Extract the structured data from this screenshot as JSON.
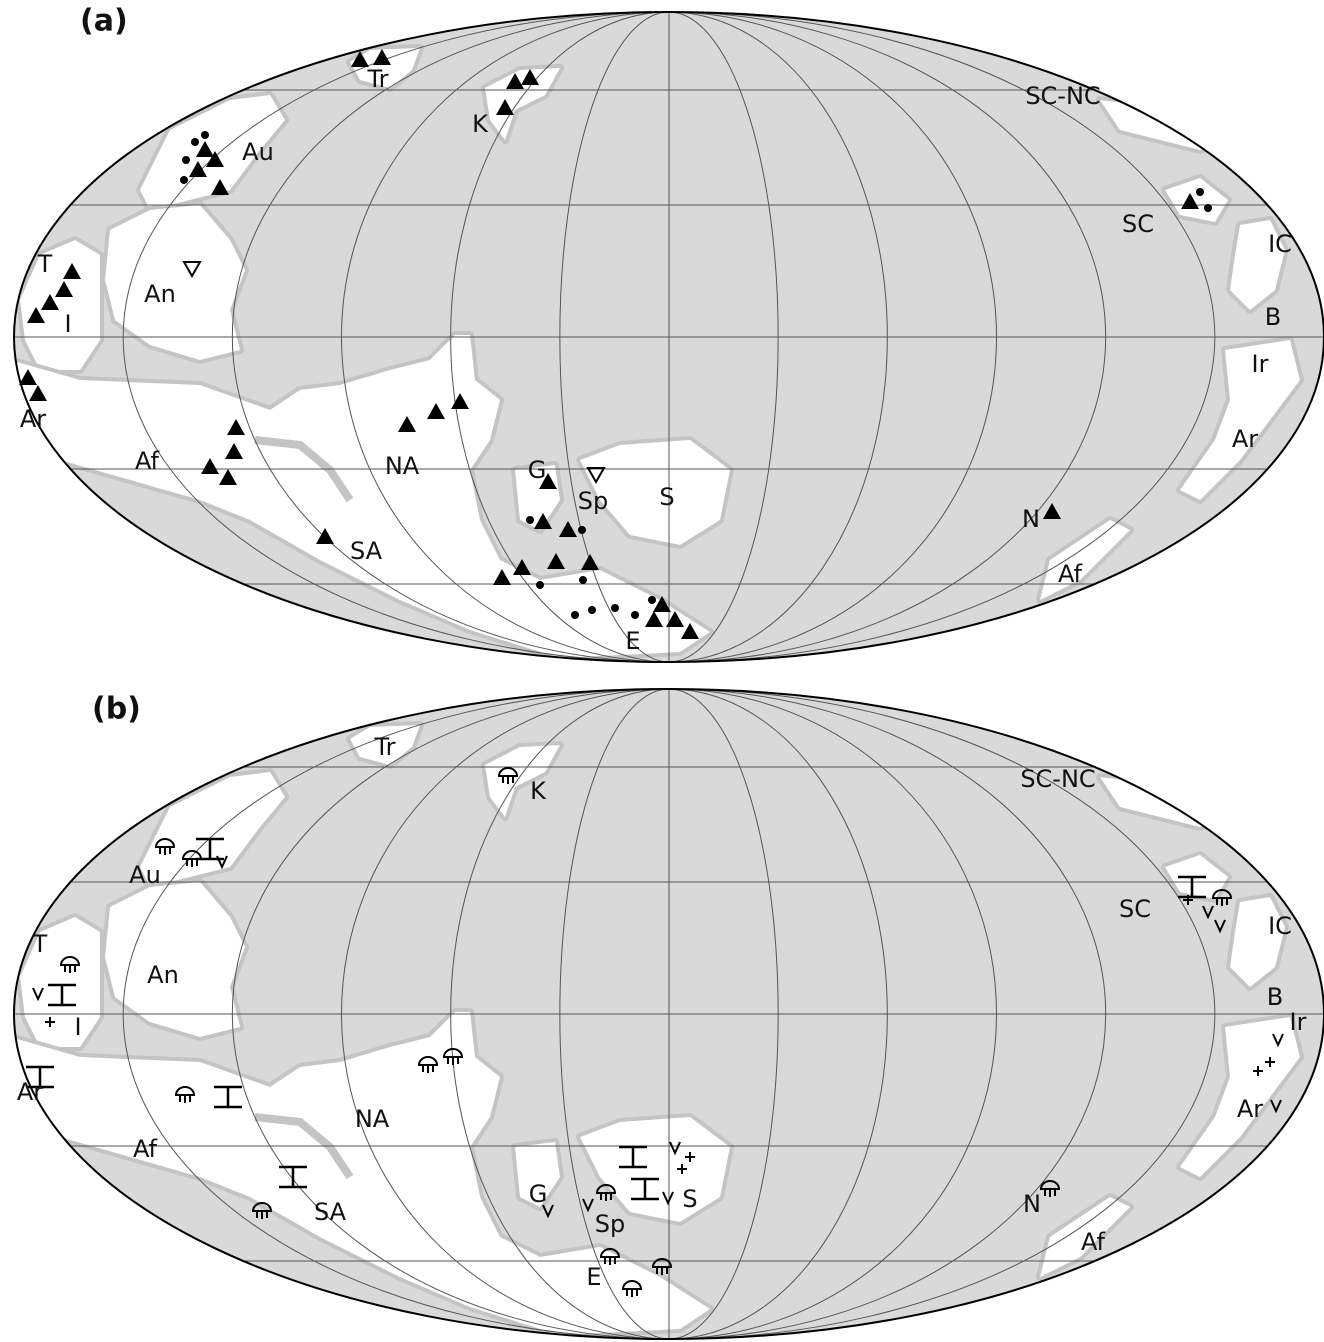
{
  "panels": [
    {
      "label": "(a)",
      "regions": [
        "Tr",
        "K",
        "SC-NC",
        "Au",
        "SC",
        "IC",
        "T",
        "An",
        "I",
        "B",
        "Ir",
        "Ar",
        "Ar",
        "Af",
        "NA",
        "G",
        "Sp",
        "S",
        "SA",
        "N",
        "Af",
        "E"
      ]
    },
    {
      "label": "(b)",
      "regions": [
        "Tr",
        "K",
        "SC-NC",
        "Au",
        "SC",
        "IC",
        "T",
        "An",
        "I",
        "B",
        "Ir",
        "Ar",
        "Ar",
        "Af",
        "NA",
        "G",
        "Sp",
        "S",
        "SA",
        "N",
        "Af",
        "E"
      ]
    }
  ]
}
